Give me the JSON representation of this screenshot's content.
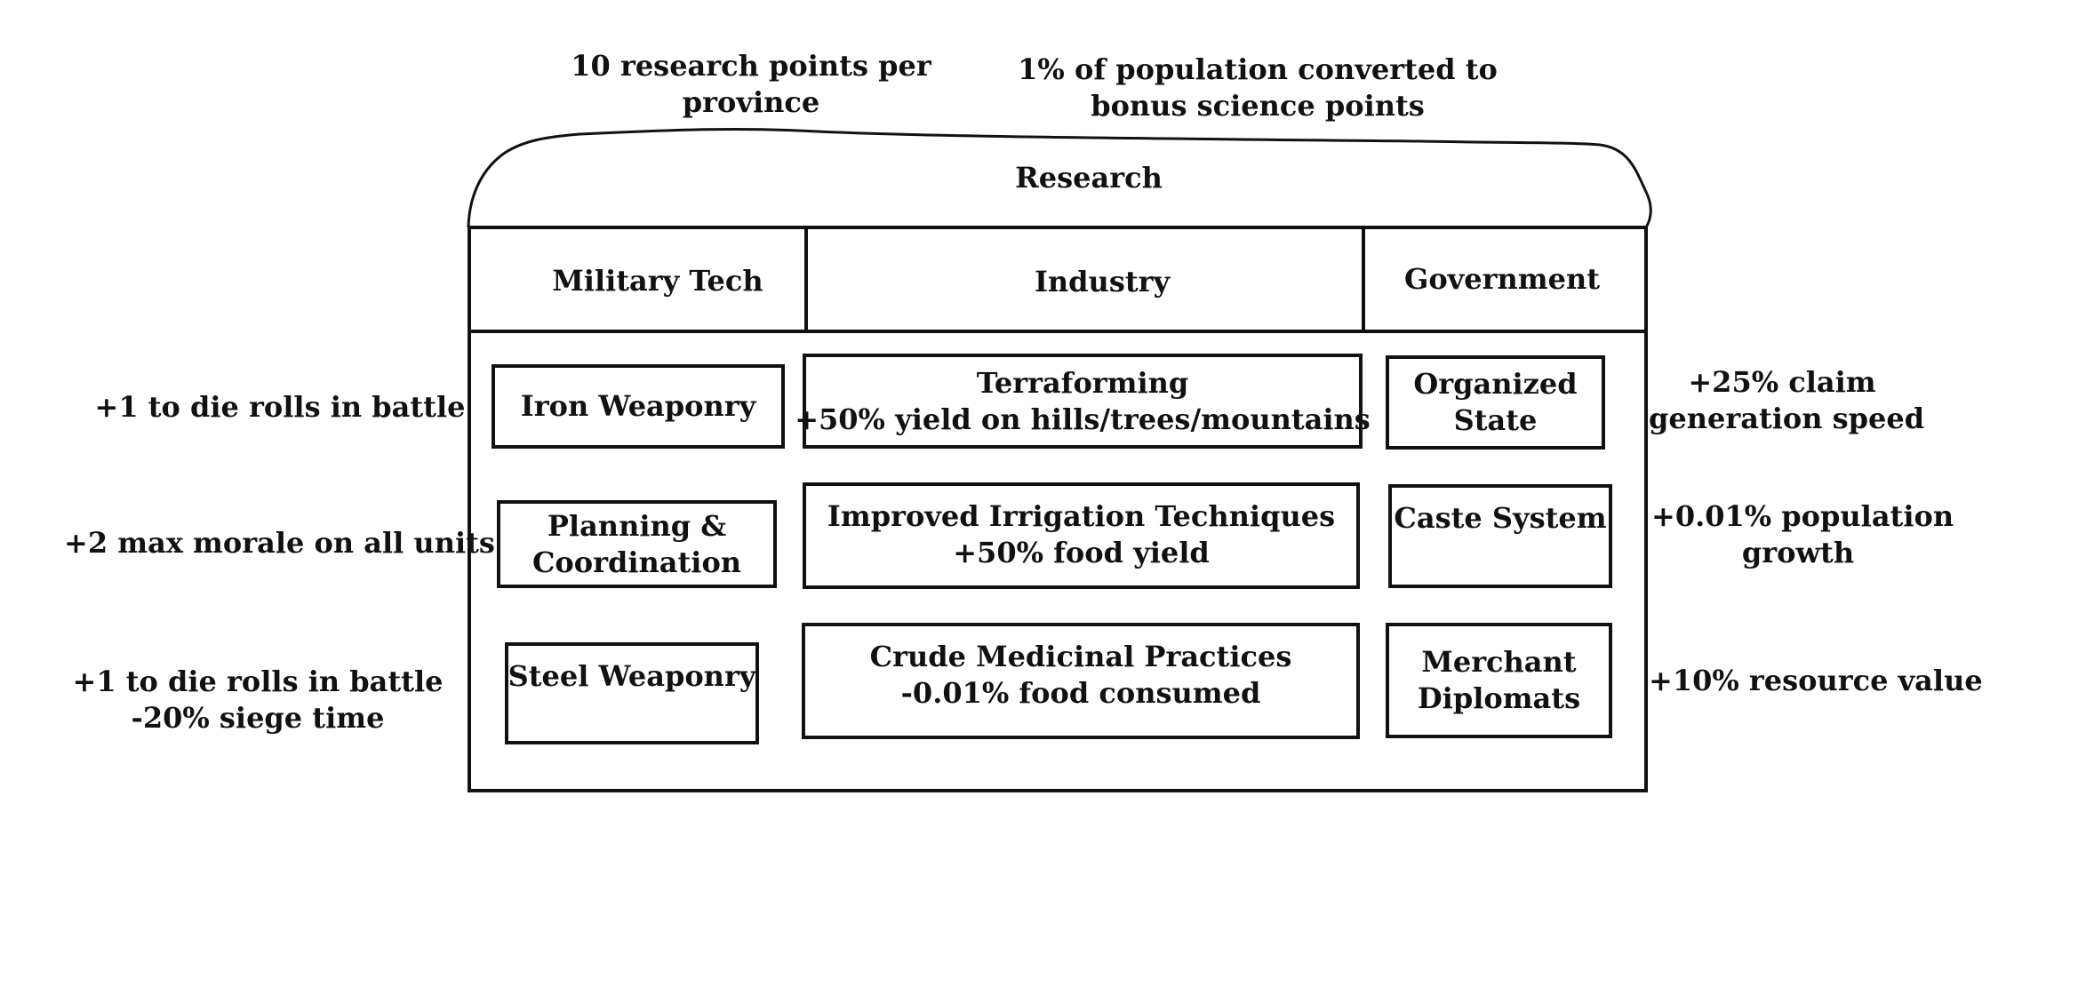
{
  "header_notes": {
    "left": [
      "10 research points per",
      "province"
    ],
    "right": [
      "1% of population converted to",
      "bonus science points"
    ]
  },
  "title": "Research",
  "columns": [
    "Military Tech",
    "Industry",
    "Government"
  ],
  "military": {
    "items": [
      [
        "Iron Weaponry"
      ],
      [
        "Planning &",
        "Coordination"
      ],
      [
        "Steel Weaponry"
      ]
    ],
    "effects": [
      [
        "+1 to die rolls in battle"
      ],
      [
        "+2 max morale on all units"
      ],
      [
        "+1 to die rolls in battle",
        "-20% siege time"
      ]
    ]
  },
  "industry": {
    "items": [
      [
        "Terraforming",
        "+50% yield on hills/trees/mountains"
      ],
      [
        "Improved Irrigation Techniques",
        "+50% food yield"
      ],
      [
        "Crude Medicinal Practices",
        "-0.01% food consumed"
      ]
    ]
  },
  "government": {
    "items": [
      [
        "Organized",
        "State"
      ],
      [
        "Caste System"
      ],
      [
        "Merchant",
        "Diplomats"
      ]
    ],
    "effects": [
      [
        "+25% claim",
        "generation speed"
      ],
      [
        "+0.01% population",
        "growth"
      ],
      [
        "+10% resource value"
      ]
    ]
  }
}
